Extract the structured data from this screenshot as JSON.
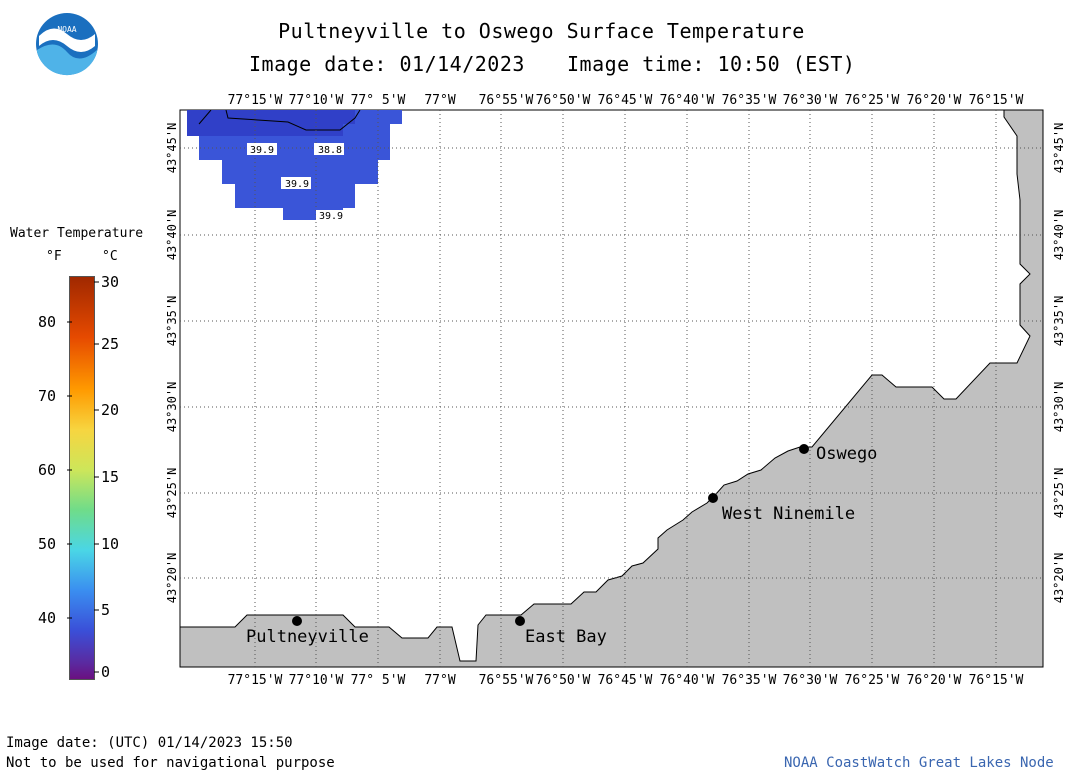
{
  "header": {
    "title": "Pultneyville to Oswego Surface Temperature",
    "image_date_label": "Image date: 01/14/2023",
    "image_time_label": "Image time: 10:50 (EST)"
  },
  "logo": {
    "text": "NOAA"
  },
  "legend": {
    "title": "Water Temperature",
    "unit_f": "°F",
    "unit_c": "°C",
    "f_ticks": [
      "80",
      "70",
      "60",
      "50",
      "40"
    ],
    "c_ticks": [
      "30",
      "25",
      "20",
      "15",
      "10",
      "5",
      "0"
    ]
  },
  "map": {
    "lon_labels": [
      "77°15'W",
      "77°10'W",
      "77° 5'W",
      "77°W",
      "76°55'W",
      "76°50'W",
      "76°45'W",
      "76°40'W",
      "76°35'W",
      "76°30'W",
      "76°25'W",
      "76°20'W",
      "76°15'W"
    ],
    "lat_labels": [
      "43°45'N",
      "43°40'N",
      "43°35'N",
      "43°30'N",
      "43°25'N",
      "43°20'N"
    ],
    "places": [
      {
        "name": "Oswego"
      },
      {
        "name": "West Ninemile"
      },
      {
        "name": "Pultneyville"
      },
      {
        "name": "East Bay"
      }
    ],
    "temps": [
      "39.9",
      "38.8",
      "39.9",
      "39.9"
    ],
    "colors": {
      "land": "#c0c0c0",
      "water_cold": "#3a55d8"
    }
  },
  "footer": {
    "utc_label": "Image date: (UTC) 01/14/2023  15:50",
    "disclaimer": "Not to be used for navigational purpose",
    "credit": "NOAA CoastWatch Great Lakes Node"
  }
}
